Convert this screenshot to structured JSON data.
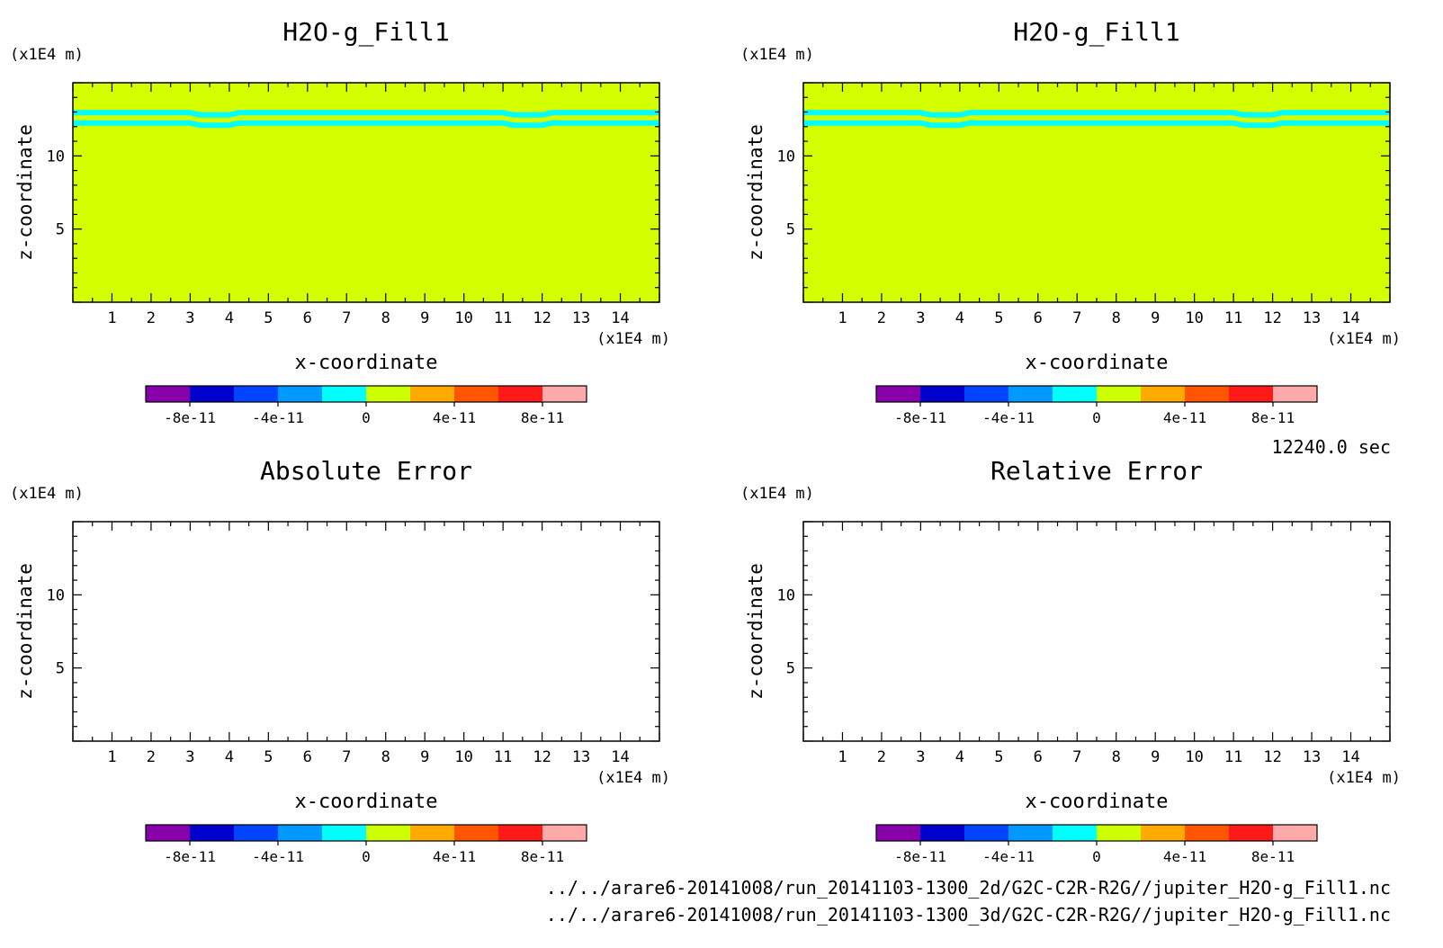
{
  "colorscale": {
    "colors": [
      "#8800aa",
      "#0000cc",
      "#0044ff",
      "#0099ff",
      "#00ffff",
      "#ccff00",
      "#ffaa00",
      "#ff5500",
      "#ff1a1a",
      "#ffaaaa"
    ],
    "tick_labels": [
      "-8e-11",
      "-4e-11",
      "0",
      "4e-11",
      "8e-11"
    ]
  },
  "footer": {
    "time": "12240.0 sec",
    "file1": "../../arare6-20141008/run_20141103-1300_2d/G2C-C2R-R2G//jupiter_H2O-g_Fill1.nc",
    "file2": "../../arare6-20141008/run_20141103-1300_3d/G2C-C2R-R2G//jupiter_H2O-g_Fill1.nc"
  },
  "chart_data": [
    {
      "type": "heatmap",
      "title": "H2O-g_Fill1",
      "xlabel": "x-coordinate",
      "ylabel": "z-coordinate",
      "x_unit": "(x1E4 m)",
      "y_unit": "(x1E4 m)",
      "xlim": [
        0,
        15
      ],
      "ylim": [
        0,
        15
      ],
      "x_ticks": [
        1,
        2,
        3,
        4,
        5,
        6,
        7,
        8,
        9,
        10,
        11,
        12,
        13,
        14
      ],
      "y_ticks": [
        5,
        10
      ],
      "field_value": 0,
      "field_color": "#d4ff00",
      "bands": [
        {
          "value": -1e-11,
          "color": "#00ffff",
          "z_center": 12.25
        },
        {
          "value": -1e-11,
          "color": "#00ffff",
          "z_center": 12.95
        }
      ]
    },
    {
      "type": "heatmap",
      "title": "H2O-g_Fill1",
      "xlabel": "x-coordinate",
      "ylabel": "z-coordinate",
      "x_unit": "(x1E4 m)",
      "y_unit": "(x1E4 m)",
      "xlim": [
        0,
        15
      ],
      "ylim": [
        0,
        15
      ],
      "x_ticks": [
        1,
        2,
        3,
        4,
        5,
        6,
        7,
        8,
        9,
        10,
        11,
        12,
        13,
        14
      ],
      "y_ticks": [
        5,
        10
      ],
      "field_value": 0,
      "field_color": "#d4ff00",
      "bands": [
        {
          "value": -1e-11,
          "color": "#00ffff",
          "z_center": 12.25
        },
        {
          "value": -1e-11,
          "color": "#00ffff",
          "z_center": 12.95
        }
      ]
    },
    {
      "type": "heatmap",
      "title": "Absolute Error",
      "xlabel": "x-coordinate",
      "ylabel": "z-coordinate",
      "x_unit": "(x1E4 m)",
      "y_unit": "(x1E4 m)",
      "xlim": [
        0,
        15
      ],
      "ylim": [
        0,
        15
      ],
      "x_ticks": [
        1,
        2,
        3,
        4,
        5,
        6,
        7,
        8,
        9,
        10,
        11,
        12,
        13,
        14
      ],
      "y_ticks": [
        5,
        10
      ],
      "field_value": null,
      "field_color": "#ffffff",
      "bands": []
    },
    {
      "type": "heatmap",
      "title": "Relative Error",
      "xlabel": "x-coordinate",
      "ylabel": "z-coordinate",
      "x_unit": "(x1E4 m)",
      "y_unit": "(x1E4 m)",
      "xlim": [
        0,
        15
      ],
      "ylim": [
        0,
        15
      ],
      "x_ticks": [
        1,
        2,
        3,
        4,
        5,
        6,
        7,
        8,
        9,
        10,
        11,
        12,
        13,
        14
      ],
      "y_ticks": [
        5,
        10
      ],
      "field_value": null,
      "field_color": "#ffffff",
      "bands": []
    }
  ]
}
